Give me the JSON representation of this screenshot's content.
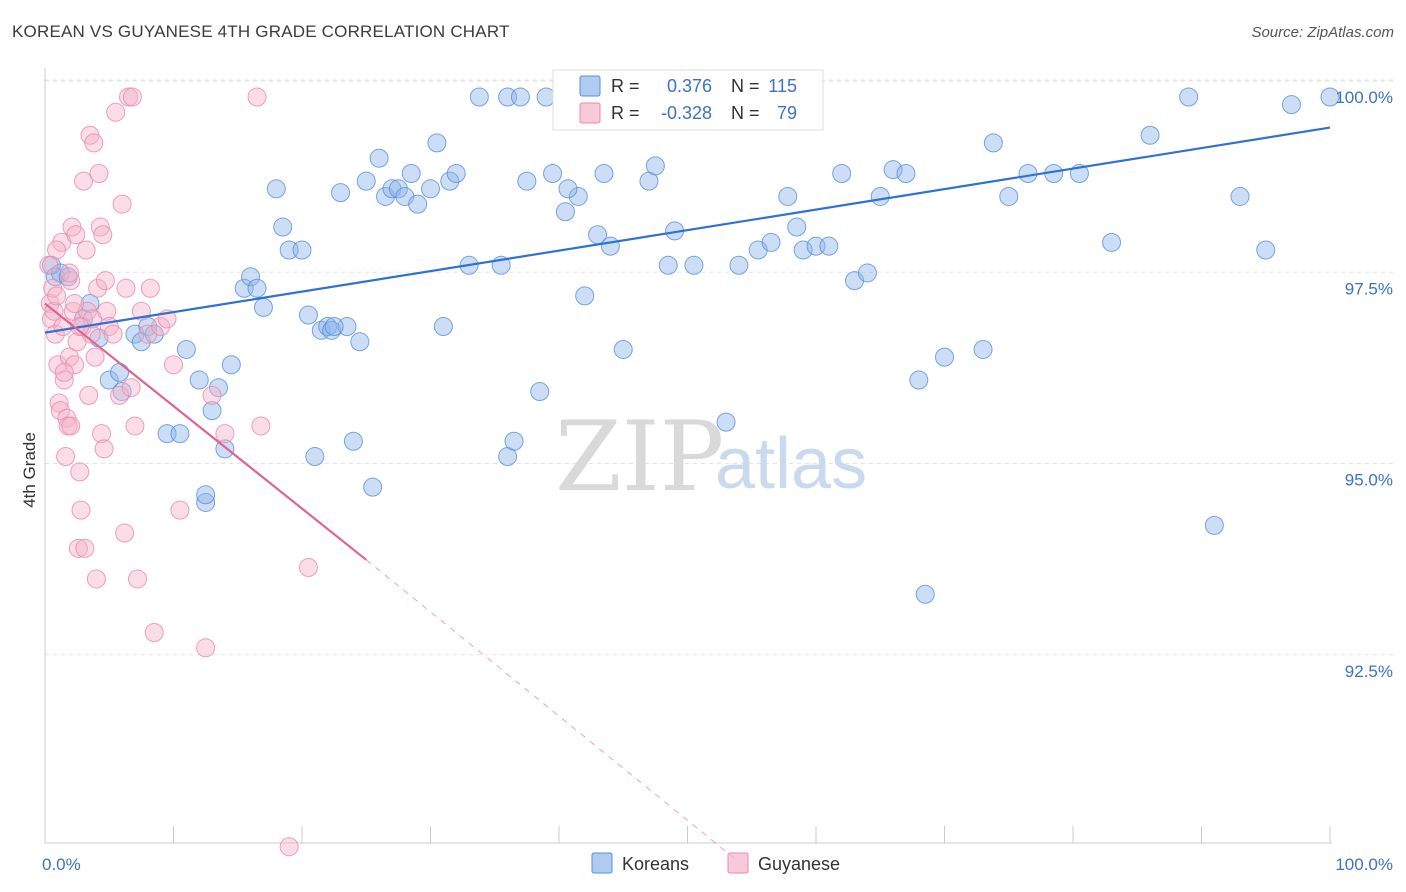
{
  "title": "KOREAN VS GUYANESE 4TH GRADE CORRELATION CHART",
  "source": "Source: ZipAtlas.com",
  "watermark": {
    "zip": "ZIP",
    "atlas": "atlas"
  },
  "chart_data": {
    "type": "scatter",
    "title": "KOREAN VS GUYANESE 4TH GRADE CORRELATION CHART",
    "xlabel": "",
    "ylabel": "4th Grade",
    "xlim": [
      0,
      100
    ],
    "ylim": [
      90.0,
      100.5
    ],
    "x_tick_labels": {
      "left": "0.0%",
      "right": "100.0%"
    },
    "y_ticks": [
      {
        "value": 100.0,
        "label": "100.0%"
      },
      {
        "value": 97.5,
        "label": "97.5%"
      },
      {
        "value": 95.0,
        "label": "95.0%"
      },
      {
        "value": 92.5,
        "label": "92.5%"
      }
    ],
    "grid": true,
    "legend_position": "bottom-center",
    "stats": [
      {
        "r_label": "R =",
        "r_value": "0.376",
        "n_label": "N =",
        "n_value": "115"
      },
      {
        "r_label": "R =",
        "r_value": "-0.328",
        "n_label": "N =",
        "n_value": "79"
      }
    ],
    "series": [
      {
        "name": "Koreans",
        "color": "#8fb5ea",
        "stroke": "#5b8fd6",
        "line_color": "#2f72d1",
        "trend": {
          "x0": 0,
          "y0": 96.92,
          "x1": 100,
          "y1": 99.6
        },
        "points": [
          [
            0.5,
            97.8
          ],
          [
            0.8,
            97.65
          ],
          [
            1.2,
            97.7
          ],
          [
            1.8,
            97.65
          ],
          [
            3,
            97.1
          ],
          [
            3.5,
            97.3
          ],
          [
            4.2,
            96.85
          ],
          [
            5,
            96.3
          ],
          [
            6,
            96.15
          ],
          [
            5.8,
            96.4
          ],
          [
            7,
            96.9
          ],
          [
            7.5,
            96.8
          ],
          [
            8,
            97.0
          ],
          [
            8.5,
            96.9
          ],
          [
            9.5,
            95.6
          ],
          [
            10.5,
            95.6
          ],
          [
            11,
            96.7
          ],
          [
            12,
            96.3
          ],
          [
            12.5,
            94.7
          ],
          [
            12.5,
            94.8
          ],
          [
            13,
            95.9
          ],
          [
            13.5,
            96.2
          ],
          [
            14,
            95.4
          ],
          [
            14.5,
            96.5
          ],
          [
            15.5,
            97.5
          ],
          [
            16,
            97.65
          ],
          [
            16.5,
            97.5
          ],
          [
            17,
            97.25
          ],
          [
            18,
            98.8
          ],
          [
            18.5,
            98.3
          ],
          [
            19,
            98.0
          ],
          [
            20,
            98.0
          ],
          [
            20.5,
            97.15
          ],
          [
            21,
            95.3
          ],
          [
            21.5,
            96.95
          ],
          [
            22,
            97.0
          ],
          [
            22.3,
            96.95
          ],
          [
            23,
            98.75
          ],
          [
            23.5,
            97.0
          ],
          [
            24,
            95.5
          ],
          [
            24.5,
            96.8
          ],
          [
            25,
            98.9
          ],
          [
            25.5,
            94.9
          ],
          [
            26,
            99.2
          ],
          [
            26.5,
            98.7
          ],
          [
            27,
            98.8
          ],
          [
            27.5,
            98.8
          ],
          [
            28,
            98.7
          ],
          [
            28.5,
            99.0
          ],
          [
            29,
            98.6
          ],
          [
            30,
            98.8
          ],
          [
            30.5,
            99.4
          ],
          [
            31,
            97.0
          ],
          [
            31.5,
            98.9
          ],
          [
            32,
            99.0
          ],
          [
            33,
            97.8
          ],
          [
            35.5,
            97.8
          ],
          [
            36,
            95.3
          ],
          [
            36.5,
            95.5
          ],
          [
            37.5,
            98.9
          ],
          [
            38.5,
            96.15
          ],
          [
            39,
            100.0
          ],
          [
            39.5,
            99.0
          ],
          [
            40.5,
            98.5
          ],
          [
            41.5,
            98.7
          ],
          [
            42,
            97.4
          ],
          [
            43,
            98.2
          ],
          [
            43.5,
            99.0
          ],
          [
            44,
            98.05
          ],
          [
            45,
            96.7
          ],
          [
            46,
            100.0
          ],
          [
            47,
            98.9
          ],
          [
            47.5,
            99.1
          ],
          [
            48.5,
            97.8
          ],
          [
            49,
            98.25
          ],
          [
            50.5,
            97.8
          ],
          [
            52,
            100.0
          ],
          [
            53,
            95.75
          ],
          [
            54,
            97.8
          ],
          [
            55.5,
            98.0
          ],
          [
            56.5,
            98.1
          ],
          [
            57,
            100.0
          ],
          [
            57.8,
            98.7
          ],
          [
            58.5,
            98.3
          ],
          [
            59,
            98.0
          ],
          [
            60,
            98.05
          ],
          [
            61,
            98.05
          ],
          [
            62,
            99.0
          ],
          [
            63,
            97.6
          ],
          [
            64,
            97.7
          ],
          [
            65,
            98.7
          ],
          [
            66,
            99.05
          ],
          [
            67,
            99.0
          ],
          [
            68,
            96.3
          ],
          [
            68.5,
            93.5
          ],
          [
            70,
            96.6
          ],
          [
            73,
            96.7
          ],
          [
            73.8,
            99.4
          ],
          [
            75,
            98.7
          ],
          [
            76.5,
            99.0
          ],
          [
            78.5,
            99.0
          ],
          [
            80.5,
            99.0
          ],
          [
            83,
            98.1
          ],
          [
            86,
            99.5
          ],
          [
            89,
            100.0
          ],
          [
            91,
            94.4
          ],
          [
            93,
            98.7
          ],
          [
            95,
            98.0
          ],
          [
            97,
            99.9
          ],
          [
            100,
            100.0
          ],
          [
            33.8,
            100.0
          ],
          [
            36,
            100.0
          ],
          [
            37,
            100.0
          ],
          [
            40.7,
            98.8
          ],
          [
            22.5,
            97.0
          ]
        ]
      },
      {
        "name": "Guyanese",
        "color": "#f5b3c9",
        "stroke": "#e88aab",
        "line_color": "#e0648f",
        "trend": {
          "x0": 0,
          "y0": 97.3,
          "x1": 25,
          "y1": 93.95
        },
        "trend_dashed": {
          "x0": 25,
          "y0": 93.95,
          "x1": 54,
          "y1": 90.0
        },
        "points": [
          [
            0.3,
            97.8
          ],
          [
            0.4,
            97.3
          ],
          [
            0.5,
            97.1
          ],
          [
            0.6,
            97.5
          ],
          [
            0.7,
            97.2
          ],
          [
            0.8,
            96.9
          ],
          [
            0.9,
            97.4
          ],
          [
            1.0,
            96.5
          ],
          [
            1.1,
            96.0
          ],
          [
            1.2,
            95.9
          ],
          [
            1.3,
            98.1
          ],
          [
            1.4,
            97.0
          ],
          [
            1.5,
            96.3
          ],
          [
            1.6,
            95.3
          ],
          [
            1.7,
            95.8
          ],
          [
            1.8,
            95.7
          ],
          [
            1.9,
            96.6
          ],
          [
            2.0,
            97.6
          ],
          [
            2.1,
            98.3
          ],
          [
            2.2,
            97.2
          ],
          [
            2.3,
            96.5
          ],
          [
            2.4,
            98.2
          ],
          [
            2.5,
            96.8
          ],
          [
            2.6,
            94.1
          ],
          [
            2.7,
            95.1
          ],
          [
            2.8,
            94.6
          ],
          [
            2.9,
            97.0
          ],
          [
            3.0,
            98.9
          ],
          [
            3.1,
            94.1
          ],
          [
            3.2,
            98.0
          ],
          [
            3.3,
            97.2
          ],
          [
            3.4,
            96.1
          ],
          [
            3.5,
            99.5
          ],
          [
            3.6,
            96.9
          ],
          [
            3.7,
            97.1
          ],
          [
            3.8,
            99.4
          ],
          [
            3.9,
            96.6
          ],
          [
            4.0,
            93.7
          ],
          [
            4.1,
            97.5
          ],
          [
            4.2,
            99.0
          ],
          [
            4.3,
            98.3
          ],
          [
            4.4,
            95.6
          ],
          [
            4.5,
            98.2
          ],
          [
            4.6,
            95.4
          ],
          [
            4.7,
            97.6
          ],
          [
            4.8,
            97.2
          ],
          [
            5.0,
            97.0
          ],
          [
            5.3,
            96.9
          ],
          [
            5.5,
            99.8
          ],
          [
            5.8,
            96.1
          ],
          [
            6.0,
            98.6
          ],
          [
            6.2,
            94.3
          ],
          [
            6.3,
            97.5
          ],
          [
            6.5,
            100.0
          ],
          [
            6.7,
            96.2
          ],
          [
            6.8,
            100.0
          ],
          [
            7.0,
            95.7
          ],
          [
            7.2,
            93.7
          ],
          [
            7.5,
            97.2
          ],
          [
            8.0,
            96.9
          ],
          [
            8.2,
            97.5
          ],
          [
            8.5,
            93.0
          ],
          [
            9.0,
            97.0
          ],
          [
            9.5,
            97.1
          ],
          [
            10.0,
            96.5
          ],
          [
            10.5,
            94.6
          ],
          [
            12.5,
            92.8
          ],
          [
            13.0,
            96.1
          ],
          [
            14.0,
            95.6
          ],
          [
            16.5,
            100.0
          ],
          [
            16.8,
            95.7
          ],
          [
            19.0,
            90.2
          ],
          [
            20.5,
            93.85
          ],
          [
            1.9,
            97.7
          ],
          [
            2.3,
            97.3
          ],
          [
            0.9,
            98.0
          ],
          [
            2.0,
            95.7
          ],
          [
            1.5,
            96.4
          ],
          [
            2.7,
            97.0
          ]
        ]
      }
    ]
  }
}
